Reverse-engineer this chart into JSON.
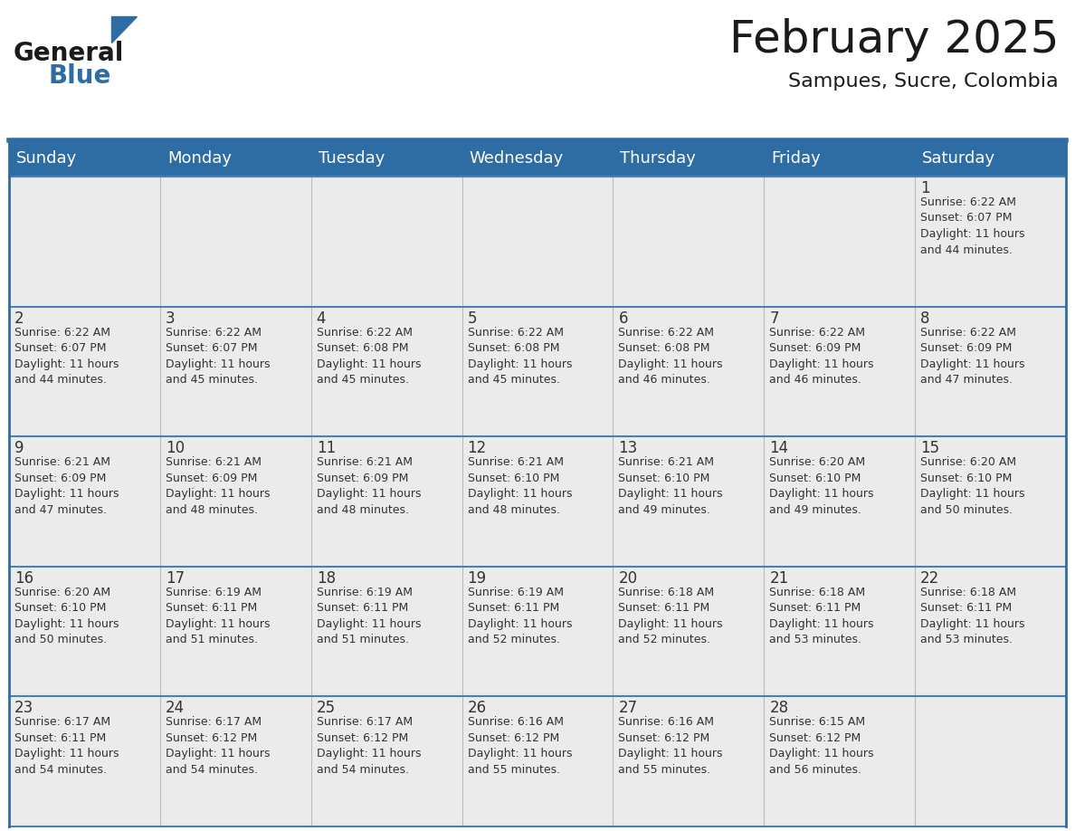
{
  "title": "February 2025",
  "subtitle": "Sampues, Sucre, Colombia",
  "header_bg_color": "#2E6DA4",
  "header_text_color": "#FFFFFF",
  "cell_bg_color": "#EBEBEB",
  "border_color": "#2E6DA4",
  "border_color_light": "#4A7FB5",
  "day_number_color": "#333333",
  "text_color": "#333333",
  "days_of_week": [
    "Sunday",
    "Monday",
    "Tuesday",
    "Wednesday",
    "Thursday",
    "Friday",
    "Saturday"
  ],
  "weeks": [
    [
      {
        "day": null,
        "info": null
      },
      {
        "day": null,
        "info": null
      },
      {
        "day": null,
        "info": null
      },
      {
        "day": null,
        "info": null
      },
      {
        "day": null,
        "info": null
      },
      {
        "day": null,
        "info": null
      },
      {
        "day": 1,
        "info": "Sunrise: 6:22 AM\nSunset: 6:07 PM\nDaylight: 11 hours\nand 44 minutes."
      }
    ],
    [
      {
        "day": 2,
        "info": "Sunrise: 6:22 AM\nSunset: 6:07 PM\nDaylight: 11 hours\nand 44 minutes."
      },
      {
        "day": 3,
        "info": "Sunrise: 6:22 AM\nSunset: 6:07 PM\nDaylight: 11 hours\nand 45 minutes."
      },
      {
        "day": 4,
        "info": "Sunrise: 6:22 AM\nSunset: 6:08 PM\nDaylight: 11 hours\nand 45 minutes."
      },
      {
        "day": 5,
        "info": "Sunrise: 6:22 AM\nSunset: 6:08 PM\nDaylight: 11 hours\nand 45 minutes."
      },
      {
        "day": 6,
        "info": "Sunrise: 6:22 AM\nSunset: 6:08 PM\nDaylight: 11 hours\nand 46 minutes."
      },
      {
        "day": 7,
        "info": "Sunrise: 6:22 AM\nSunset: 6:09 PM\nDaylight: 11 hours\nand 46 minutes."
      },
      {
        "day": 8,
        "info": "Sunrise: 6:22 AM\nSunset: 6:09 PM\nDaylight: 11 hours\nand 47 minutes."
      }
    ],
    [
      {
        "day": 9,
        "info": "Sunrise: 6:21 AM\nSunset: 6:09 PM\nDaylight: 11 hours\nand 47 minutes."
      },
      {
        "day": 10,
        "info": "Sunrise: 6:21 AM\nSunset: 6:09 PM\nDaylight: 11 hours\nand 48 minutes."
      },
      {
        "day": 11,
        "info": "Sunrise: 6:21 AM\nSunset: 6:09 PM\nDaylight: 11 hours\nand 48 minutes."
      },
      {
        "day": 12,
        "info": "Sunrise: 6:21 AM\nSunset: 6:10 PM\nDaylight: 11 hours\nand 48 minutes."
      },
      {
        "day": 13,
        "info": "Sunrise: 6:21 AM\nSunset: 6:10 PM\nDaylight: 11 hours\nand 49 minutes."
      },
      {
        "day": 14,
        "info": "Sunrise: 6:20 AM\nSunset: 6:10 PM\nDaylight: 11 hours\nand 49 minutes."
      },
      {
        "day": 15,
        "info": "Sunrise: 6:20 AM\nSunset: 6:10 PM\nDaylight: 11 hours\nand 50 minutes."
      }
    ],
    [
      {
        "day": 16,
        "info": "Sunrise: 6:20 AM\nSunset: 6:10 PM\nDaylight: 11 hours\nand 50 minutes."
      },
      {
        "day": 17,
        "info": "Sunrise: 6:19 AM\nSunset: 6:11 PM\nDaylight: 11 hours\nand 51 minutes."
      },
      {
        "day": 18,
        "info": "Sunrise: 6:19 AM\nSunset: 6:11 PM\nDaylight: 11 hours\nand 51 minutes."
      },
      {
        "day": 19,
        "info": "Sunrise: 6:19 AM\nSunset: 6:11 PM\nDaylight: 11 hours\nand 52 minutes."
      },
      {
        "day": 20,
        "info": "Sunrise: 6:18 AM\nSunset: 6:11 PM\nDaylight: 11 hours\nand 52 minutes."
      },
      {
        "day": 21,
        "info": "Sunrise: 6:18 AM\nSunset: 6:11 PM\nDaylight: 11 hours\nand 53 minutes."
      },
      {
        "day": 22,
        "info": "Sunrise: 6:18 AM\nSunset: 6:11 PM\nDaylight: 11 hours\nand 53 minutes."
      }
    ],
    [
      {
        "day": 23,
        "info": "Sunrise: 6:17 AM\nSunset: 6:11 PM\nDaylight: 11 hours\nand 54 minutes."
      },
      {
        "day": 24,
        "info": "Sunrise: 6:17 AM\nSunset: 6:12 PM\nDaylight: 11 hours\nand 54 minutes."
      },
      {
        "day": 25,
        "info": "Sunrise: 6:17 AM\nSunset: 6:12 PM\nDaylight: 11 hours\nand 54 minutes."
      },
      {
        "day": 26,
        "info": "Sunrise: 6:16 AM\nSunset: 6:12 PM\nDaylight: 11 hours\nand 55 minutes."
      },
      {
        "day": 27,
        "info": "Sunrise: 6:16 AM\nSunset: 6:12 PM\nDaylight: 11 hours\nand 55 minutes."
      },
      {
        "day": 28,
        "info": "Sunrise: 6:15 AM\nSunset: 6:12 PM\nDaylight: 11 hours\nand 56 minutes."
      },
      {
        "day": null,
        "info": null
      }
    ]
  ],
  "logo_text1": "General",
  "logo_text2": "Blue",
  "logo_color1": "#1a1a1a",
  "logo_color2": "#2E6DA4",
  "logo_triangle_color": "#2E6DA4",
  "title_fontsize": 36,
  "subtitle_fontsize": 16,
  "dow_fontsize": 13,
  "day_num_fontsize": 12,
  "info_fontsize": 9
}
